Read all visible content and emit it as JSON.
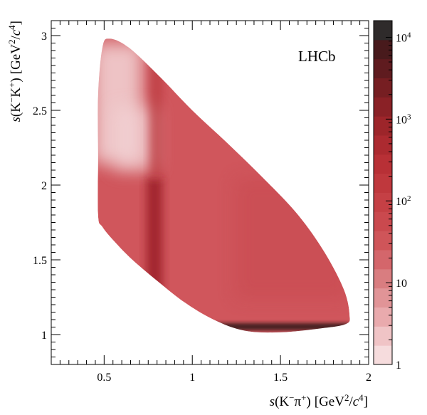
{
  "chart_data": {
    "type": "heatmap",
    "title": "",
    "annotation": "LHCb",
    "xlabel": {
      "prefix": "s",
      "var": "(K",
      "sup1": "−",
      "mid": "π",
      "sup2": "+",
      "close": ")",
      "units": "[GeV",
      "usup1": "2",
      "uslash": "/",
      "uc": "c",
      "usup2": "4",
      "uclose": "]"
    },
    "ylabel": {
      "prefix": "s",
      "var": "(K",
      "sup1": "−",
      "mid": "K",
      "sup2": "+",
      "close": ")",
      "units": "[GeV",
      "usup1": "2",
      "uslash": "/",
      "uc": "c",
      "usup2": "4",
      "uclose": "]"
    },
    "xlim": [
      0.2,
      2.0
    ],
    "ylim": [
      0.8,
      3.1
    ],
    "x_ticks": [
      0.5,
      1,
      1.5,
      2
    ],
    "x_tick_labels": [
      "0.5",
      "1",
      "1.5",
      "2"
    ],
    "y_ticks": [
      1,
      1.5,
      2,
      2.5,
      3
    ],
    "y_tick_labels": [
      "1",
      "1.5",
      "2",
      "2.5",
      "3"
    ],
    "colorbar": {
      "scale": "log",
      "range": [
        1,
        16000
      ],
      "ticks": [
        {
          "value": 1,
          "base": "1",
          "exp": ""
        },
        {
          "value": 10,
          "base": "10",
          "exp": ""
        },
        {
          "value": 100,
          "base": "10",
          "exp": "2"
        },
        {
          "value": 1000,
          "base": "10",
          "exp": "3"
        },
        {
          "value": 10000,
          "base": "10",
          "exp": "4"
        }
      ],
      "colors": [
        "#f6dcdd",
        "#f0c4c6",
        "#e9aaad",
        "#e19497",
        "#d97d80",
        "#d4666b",
        "#cf5559",
        "#ca494e",
        "#c54045",
        "#bf383d",
        "#b83036",
        "#ac2a30",
        "#9d252a",
        "#8a2126",
        "#761e22",
        "#5f1b1f",
        "#481a1c",
        "#2f2b2b"
      ]
    },
    "dalitz_boundary": [
      [
        0.4655,
        1.8
      ],
      [
        0.4656,
        2.2
      ],
      [
        0.4656,
        2.6
      ],
      [
        0.49,
        2.92
      ],
      [
        0.53,
        2.98
      ],
      [
        0.64,
        2.92
      ],
      [
        0.82,
        2.72
      ],
      [
        1.0,
        2.5
      ],
      [
        1.2,
        2.28
      ],
      [
        1.4,
        2.05
      ],
      [
        1.6,
        1.8
      ],
      [
        1.75,
        1.55
      ],
      [
        1.86,
        1.3
      ],
      [
        1.892,
        1.13
      ],
      [
        1.87,
        1.07
      ],
      [
        1.72,
        1.04
      ],
      [
        1.5,
        1.015
      ],
      [
        1.3,
        1.025
      ],
      [
        1.12,
        1.1
      ],
      [
        0.95,
        1.22
      ],
      [
        0.8,
        1.36
      ],
      [
        0.66,
        1.5
      ],
      [
        0.56,
        1.62
      ],
      [
        0.49,
        1.72
      ]
    ],
    "features": [
      {
        "name": "K*(892) vertical band",
        "x": 0.8,
        "y_range": [
          1.2,
          2.8
        ],
        "density": "high"
      },
      {
        "name": "phi(1020) horizontal band",
        "y": 1.04,
        "x_range": [
          1.2,
          1.85
        ],
        "density": "very high"
      },
      {
        "name": "depletion region",
        "x": 0.58,
        "y": 2.5,
        "density": "low"
      }
    ]
  }
}
